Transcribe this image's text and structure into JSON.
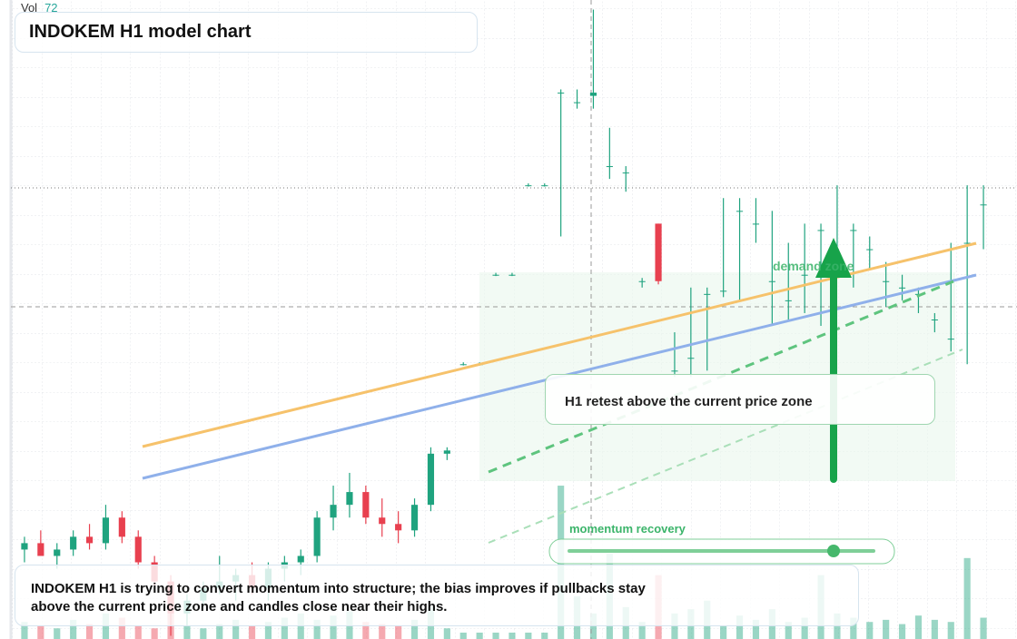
{
  "chart_data": {
    "type": "candlestick",
    "title": "INDOKEM H1 model chart",
    "volume_label": "Vol",
    "volume_value": 72,
    "annotations": [
      "H1 retest above the current price zone",
      "demand zone",
      "momentum recovery",
      "INDOKEM H1 is trying to convert momentum into structure; the bias improves if pullbacks stay above the current price zone and candles close near their highs."
    ],
    "categories": [
      null,
      null,
      null,
      null,
      null,
      null,
      null,
      null,
      null,
      null,
      null,
      null,
      null,
      null,
      null,
      null,
      null,
      null,
      null,
      null,
      null,
      null,
      null,
      null,
      null,
      null,
      null,
      null,
      null,
      null,
      null,
      null,
      null,
      null,
      null,
      null,
      null,
      null,
      null,
      null,
      null,
      null,
      null,
      null,
      null,
      null,
      null,
      null,
      null,
      null,
      null,
      null,
      null,
      null,
      null,
      null,
      null,
      null,
      null,
      null
    ],
    "open": [
      14,
      15,
      13,
      14,
      16,
      15,
      19,
      16,
      12,
      9,
      4,
      6,
      8,
      9,
      10,
      8,
      11,
      12,
      13,
      19,
      21,
      23,
      19,
      18,
      17,
      21,
      29,
      43,
      43,
      57,
      57,
      71,
      71,
      85.5,
      84,
      85,
      74,
      73,
      56,
      65,
      42,
      44,
      54,
      54.5,
      67,
      65,
      56,
      53,
      57,
      64,
      59,
      64,
      61,
      56,
      55,
      54,
      50,
      47,
      62,
      68
    ],
    "high": [
      16,
      17,
      15,
      17,
      18,
      21,
      20,
      17,
      13,
      10,
      7,
      9,
      13,
      11,
      12,
      12,
      13,
      14,
      20,
      24,
      26,
      24,
      22,
      20,
      22,
      30,
      30,
      43.3,
      43.3,
      57.3,
      57.3,
      71.3,
      71.3,
      86,
      86,
      98.5,
      80,
      74,
      56.5,
      65,
      48,
      55,
      55,
      69,
      69,
      69,
      67,
      62,
      65,
      65,
      71,
      65,
      63,
      59,
      57,
      55,
      51,
      62,
      71,
      71
    ],
    "low": [
      12,
      13,
      11,
      13,
      14,
      14,
      15,
      11,
      8,
      0.5,
      2,
      5,
      7,
      6,
      7,
      6,
      9,
      10,
      12,
      17,
      19,
      18,
      16,
      15,
      16,
      20,
      28,
      42.8,
      42.8,
      56.8,
      56.8,
      70.8,
      70.8,
      63,
      83,
      83,
      72,
      70,
      55,
      55.5,
      41,
      41,
      42,
      53.5,
      53,
      62,
      49,
      50,
      51,
      49,
      57,
      55,
      58,
      52,
      53,
      51,
      48,
      45,
      43,
      61
    ],
    "close": [
      15,
      13,
      14,
      16,
      15,
      19,
      16,
      12,
      9,
      4,
      6,
      8,
      9,
      10,
      8,
      11,
      12,
      13,
      19,
      21,
      23,
      19,
      18,
      17,
      21,
      29,
      29.5,
      43,
      43,
      57,
      57,
      71,
      71,
      85.5,
      84,
      85.5,
      74,
      73,
      56,
      56,
      42,
      44,
      54,
      54.5,
      67,
      65,
      56,
      53,
      57,
      64,
      59,
      64,
      61,
      56,
      55,
      54,
      50,
      47,
      62,
      68
    ],
    "volume": [
      8,
      6,
      5,
      9,
      7,
      12,
      10,
      6,
      5,
      14,
      6,
      5,
      7,
      9,
      6,
      8,
      10,
      12,
      9,
      11,
      13,
      8,
      7,
      6,
      9,
      15,
      5,
      3,
      3,
      3,
      3,
      3,
      3,
      72,
      20,
      12,
      40,
      15,
      8,
      30,
      12,
      14,
      18,
      6,
      11,
      9,
      14,
      8,
      10,
      30,
      12,
      10,
      8,
      9,
      7,
      11,
      9,
      8,
      38,
      10
    ],
    "ylim": [
      0,
      100
    ],
    "y2lim": [
      0,
      300
    ],
    "up_color": "#1fa37f",
    "down_color": "#e8404f"
  }
}
